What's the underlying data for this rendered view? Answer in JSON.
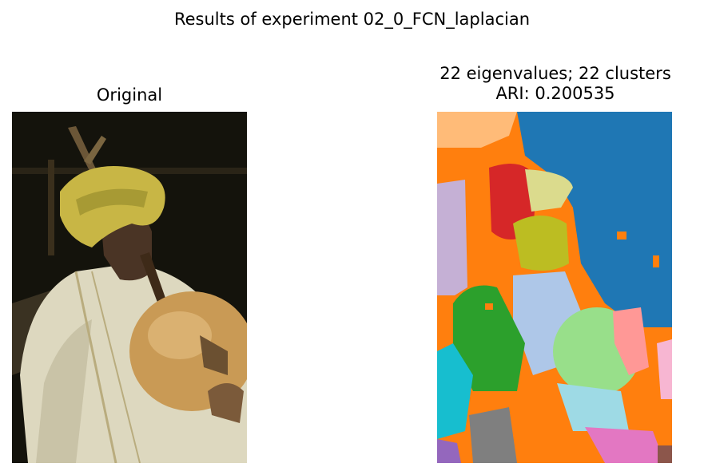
{
  "figure": {
    "suptitle": "Results of experiment 02_0_FCN_laplacian"
  },
  "left_panel": {
    "title": "Original"
  },
  "right_panel": {
    "title_line1": "22 eigenvalues; 22 clusters",
    "title_line2": "ARI: 0.200535"
  },
  "colors": {
    "segment_palette": [
      "#1f77b4",
      "#ff7f0e",
      "#2ca02c",
      "#d62728",
      "#c5b0d5",
      "#aec7e8",
      "#bcbd22",
      "#dbdb8d",
      "#98df8a",
      "#ff9896",
      "#17becf",
      "#9edae5",
      "#7f7f7f",
      "#e377c2",
      "#f7b6d2",
      "#ffbb78",
      "#8c564b",
      "#9467bd",
      "#c7c7c7",
      "#c49c94"
    ]
  }
}
